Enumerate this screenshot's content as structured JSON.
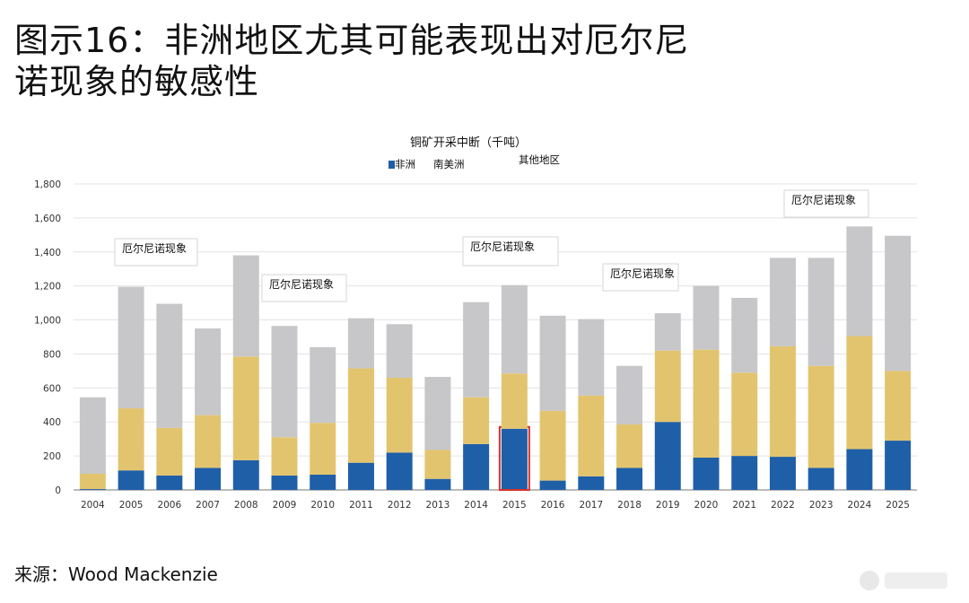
{
  "header": {
    "title": "图示16：非洲地区尤其可能表现出对厄尔尼\n诺现象的敏感性"
  },
  "footer": {
    "source": "来源：Wood Mackenzie"
  },
  "chart_data": {
    "type": "bar",
    "stacked": true,
    "title": "铜矿开采中断（千吨）",
    "xlabel": "",
    "ylabel": "",
    "ylim": [
      0,
      1800
    ],
    "yticks": [
      "0",
      "200",
      "400",
      "600",
      "800",
      "1,000",
      "1,200",
      "1,400",
      "1,600",
      "1,800"
    ],
    "grid": true,
    "legend_position": "top",
    "categories": [
      "2004",
      "2005",
      "2006",
      "2007",
      "2008",
      "2009",
      "2010",
      "2011",
      "2012",
      "2013",
      "2014",
      "2015",
      "2016",
      "2017",
      "2018",
      "2019",
      "2020",
      "2021",
      "2022",
      "2023",
      "2024",
      "2025"
    ],
    "series": [
      {
        "name": "非洲",
        "color": "#1f5fa8",
        "values": [
          5,
          115,
          85,
          130,
          175,
          85,
          90,
          160,
          220,
          65,
          270,
          360,
          55,
          80,
          130,
          400,
          190,
          200,
          195,
          130,
          240,
          290
        ]
      },
      {
        "name": "南美洲",
        "color": "#e3c46e",
        "values": [
          90,
          365,
          280,
          310,
          610,
          225,
          305,
          555,
          440,
          170,
          275,
          325,
          410,
          475,
          255,
          420,
          635,
          490,
          650,
          600,
          665,
          410
        ]
      },
      {
        "name": "其他地区",
        "color": "#c7c7c9",
        "values": [
          450,
          715,
          730,
          510,
          595,
          655,
          445,
          295,
          315,
          430,
          560,
          520,
          560,
          450,
          345,
          220,
          375,
          440,
          520,
          635,
          645,
          795
        ]
      }
    ],
    "annotations": [
      {
        "text": "厄尔尼诺现象",
        "year": "2005"
      },
      {
        "text": "厄尔尼诺现象",
        "year": "2009"
      },
      {
        "text": "厄尔尼诺现象",
        "year": "2015"
      },
      {
        "text": "厄尔尼诺现象",
        "year": "2018"
      },
      {
        "text": "厄尔尼诺现象",
        "year": "2024"
      }
    ],
    "highlight": {
      "category": "2015",
      "series": "非洲",
      "color": "#d9302c"
    }
  }
}
